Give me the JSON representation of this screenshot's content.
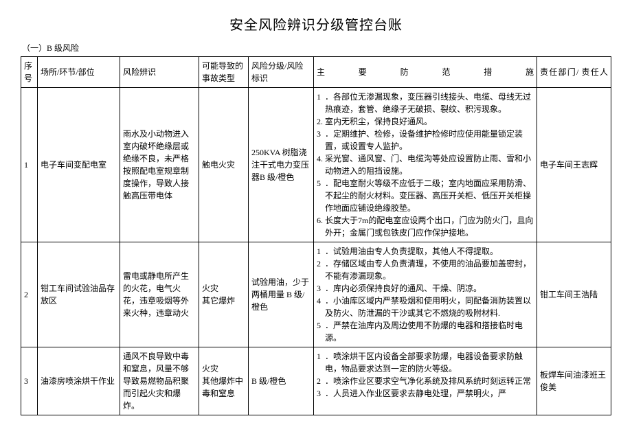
{
  "title": "安全风险辨识分级管控台账",
  "subtitle": "（一）B 级风险",
  "columns": {
    "seq": "序号",
    "location": "场所/环节/部位",
    "risk": "风险辨识",
    "type": "可能导致的事故类型",
    "level": "风险分级/风险标识",
    "measure": "主要防范措施",
    "resp": "责任部门/\n责任人"
  },
  "rows": [
    {
      "seq": "1",
      "location": "电子车间变配电室",
      "risk": "雨水及小动物进入室内破坏绝缘层或绝缘不良，未严格按照配电室规章制度操作，导致人接触高压带电体",
      "type": "触电火灾",
      "level": "250KVA 树脂浇注干式电力变压器B 级/橙色",
      "measures": [
        {
          "n": "1",
          "t": "．各部位无渗漏现象，变压器引线接头、电缆、母线无过热痕迹，套管、绝缘子无破损、裂纹、积污现象。"
        },
        {
          "n": "2.",
          "t": "室内无积尘，保持良好通风。"
        },
        {
          "n": "3",
          "t": "．定期维护、检修，设备维护检修时应使用能量锁定装置，或设置专人监护。"
        },
        {
          "n": "4.",
          "t": "采光窗、通风窗、门、电缆沟等处应设置防止雨、雪和小动物进入的阻挡设施。"
        },
        {
          "n": "5",
          "t": "．配电室耐火等级不应低于二级；室内地面应采用防滑、不起尘的耐火材料。变压器、高压开关柜、低压开关柜操作地面应铺设绝缘胶垫。"
        },
        {
          "n": "6.",
          "t": "长度大于7m的配电室应设两个出口，门应为防火门，且向外开；金属门或包铁皮门应作保护接地。"
        }
      ],
      "resp": "电子车间王志辉"
    },
    {
      "seq": "2",
      "location": "钳工车间试验油品存放区",
      "risk": "雷电或静电所产生的火花，电气火花，违章吸烟等外来火种，违章动火",
      "type": "火灾\n其它爆炸",
      "level": "试验用油，少于两桶用量 B 级/橙色",
      "measures": [
        {
          "n": "1",
          "t": "．试验用油由专人负责提取，其他人不得提取。"
        },
        {
          "n": "2",
          "t": "．存储区域由专人负责清理，不使用的油品要加盖密封，不能有渗漏现象。"
        },
        {
          "n": "3",
          "t": "．库内必须保持良好的通风、干燥、阴凉。"
        },
        {
          "n": "4",
          "t": "．小油库区域内严禁吸烟和使用明火，同配备消防装置以及防火、防泄漏的干沙或其它不燃烧的吸附材料."
        },
        {
          "n": "5",
          "t": "．严禁在油库内及周边使用不防爆的电器和搭接临时电源。"
        }
      ],
      "resp": "钳工车间王浩陆"
    },
    {
      "seq": "3",
      "location": "油漆房喷涂烘干作业",
      "risk": "通风不良导致中毒和窒息，风量不够导致易燃物品积聚而引起火灾和爆炸。",
      "type": "火灾\n其他爆炸中毒和窒息",
      "level": "B 级/橙色",
      "measures": [
        {
          "n": "1",
          "t": "．喷涂烘干区内设备全部要求防爆，电器设备要求防触电，物品要求达到一定的防火等级。"
        },
        {
          "n": "2",
          "t": "．喷涂作业区要求空气净化系统及排风系统时刻运转正常"
        },
        {
          "n": "3",
          "t": "．人员进入作业区要求去静电处理，严禁明火，严"
        }
      ],
      "resp": "板焊车间油漆班王俊美"
    }
  ],
  "styles": {
    "background_color": "#ffffff",
    "border_color": "#000000",
    "text_color": "#000000",
    "title_fontsize": 20,
    "body_fontsize": 12
  }
}
